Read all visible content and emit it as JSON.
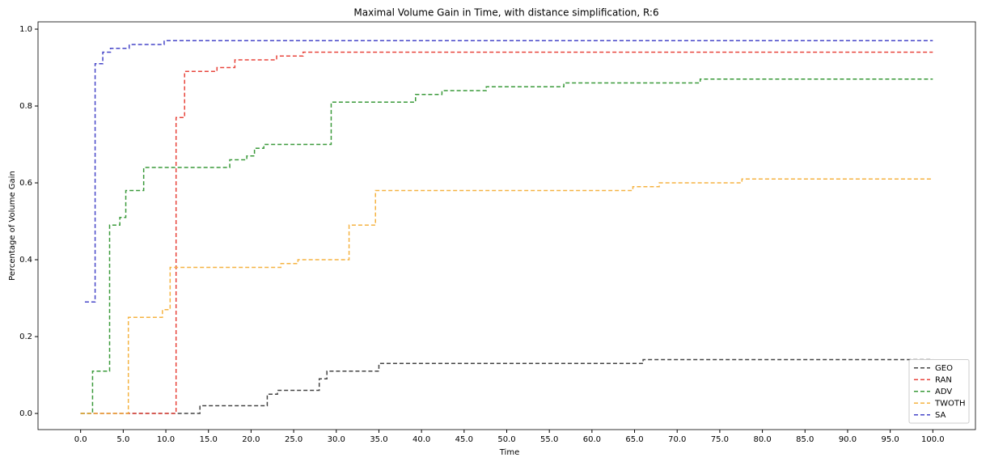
{
  "chart_data": {
    "type": "line",
    "step": "post",
    "title": "Maximal Volume Gain in Time, with distance simplification, R:6",
    "x_label": "Time",
    "y_label": "Percentage of Volume Gain",
    "xlim": [
      -5.0,
      105.0
    ],
    "ylim": [
      -0.042,
      1.019
    ],
    "xticks": [
      {
        "value": 0,
        "label": "0.0"
      },
      {
        "value": 5,
        "label": "5.0"
      },
      {
        "value": 10,
        "label": "10.0"
      },
      {
        "value": 15,
        "label": "15.0"
      },
      {
        "value": 20,
        "label": "20.0"
      },
      {
        "value": 25,
        "label": "25.0"
      },
      {
        "value": 30,
        "label": "30.0"
      },
      {
        "value": 35,
        "label": "35.0"
      },
      {
        "value": 40,
        "label": "40.0"
      },
      {
        "value": 45,
        "label": "45.0"
      },
      {
        "value": 50,
        "label": "50.0"
      },
      {
        "value": 55,
        "label": "55.0"
      },
      {
        "value": 60,
        "label": "60.0"
      },
      {
        "value": 65,
        "label": "65.0"
      },
      {
        "value": 70,
        "label": "70.0"
      },
      {
        "value": 75,
        "label": "75.0"
      },
      {
        "value": 80,
        "label": "80.0"
      },
      {
        "value": 85,
        "label": "85.0"
      },
      {
        "value": 90,
        "label": "90.0"
      },
      {
        "value": 95,
        "label": "95.0"
      },
      {
        "value": 100,
        "label": "100.0"
      }
    ],
    "yticks": [
      {
        "value": 0,
        "label": "0.0"
      },
      0.2,
      0.4,
      0.6,
      0.8,
      {
        "value": 1,
        "label": "1.0"
      }
    ],
    "legend": "lower right",
    "series": [
      {
        "name": "GEO",
        "color": "#444444",
        "x": [
          0,
          14,
          21.9,
          23.1,
          28.0,
          28.9,
          35.0,
          66.0,
          100
        ],
        "values": [
          0,
          0.02,
          0.05,
          0.06,
          0.09,
          0.11,
          0.13,
          0.14,
          0.14
        ]
      },
      {
        "name": "RAN",
        "color": "#e8453c",
        "x": [
          0,
          11.2,
          12.2,
          16.0,
          18.1,
          23.0,
          26.1,
          100
        ],
        "values": [
          0,
          0.77,
          0.89,
          0.9,
          0.92,
          0.93,
          0.94,
          0.94
        ]
      },
      {
        "name": "ADV",
        "color": "#3a9a3a",
        "x": [
          0,
          1.4,
          3.4,
          4.6,
          5.3,
          7.4,
          17.5,
          19.5,
          20.4,
          21.5,
          29.4,
          39.3,
          42.4,
          47.6,
          56.7,
          72.7,
          100
        ],
        "values": [
          0,
          0.11,
          0.49,
          0.51,
          0.58,
          0.64,
          0.66,
          0.67,
          0.69,
          0.7,
          0.81,
          0.83,
          0.84,
          0.85,
          0.86,
          0.87,
          0.87
        ]
      },
      {
        "name": "TWOTH",
        "color": "#f5b342",
        "x": [
          0,
          5.6,
          9.6,
          10.5,
          23.5,
          25.5,
          31.5,
          34.6,
          64.8,
          67.9,
          77.6,
          100
        ],
        "values": [
          0,
          0.25,
          0.27,
          0.38,
          0.39,
          0.4,
          0.49,
          0.58,
          0.59,
          0.6,
          0.61,
          0.61
        ]
      },
      {
        "name": "SA",
        "color": "#4646c8",
        "x": [
          0.5,
          1.7,
          2.6,
          3.5,
          5.7,
          9.8,
          100
        ],
        "values": [
          0.29,
          0.91,
          0.94,
          0.95,
          0.96,
          0.97,
          0.97
        ]
      }
    ]
  }
}
